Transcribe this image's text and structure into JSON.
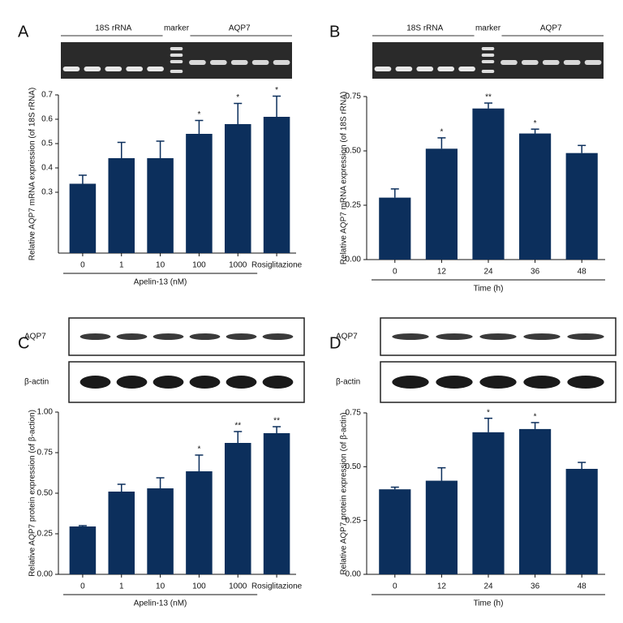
{
  "chart_data": [
    {
      "type": "bar",
      "panel": "A",
      "gel_labels": [
        "18S rRNA",
        "marker",
        "AQP7"
      ],
      "y_label": "Relative AQP7 mRNA expression (of 18S rRNA)",
      "x_label": "Apelin-13 (nM)",
      "categories": [
        "0",
        "1",
        "10",
        "100",
        "1000",
        "Rosiglitazione"
      ],
      "values": [
        0.335,
        0.44,
        0.44,
        0.54,
        0.58,
        0.61
      ],
      "errors": [
        0.035,
        0.065,
        0.07,
        0.055,
        0.085,
        0.085
      ],
      "annotations": [
        null,
        null,
        null,
        "*",
        "*",
        "*"
      ],
      "color": "#0c2f5c",
      "ylim": [
        0.05,
        0.7
      ],
      "yticks": [
        0.3,
        0.4,
        0.5,
        0.6,
        0.7
      ]
    },
    {
      "type": "bar",
      "panel": "B",
      "gel_labels": [
        "18S rRNA",
        "marker",
        "AQP7"
      ],
      "y_label": "Relative AQP7 mRNA expression (of 18S rRNA)",
      "x_label": "Time (h)",
      "categories": [
        "0",
        "12",
        "24",
        "36",
        "48"
      ],
      "values": [
        0.285,
        0.51,
        0.695,
        0.58,
        0.49
      ],
      "errors": [
        0.04,
        0.05,
        0.025,
        0.02,
        0.035
      ],
      "annotations": [
        null,
        "*",
        "**",
        "*",
        null
      ],
      "color": "#0c2f5c",
      "ylim": [
        0,
        0.75
      ],
      "yticks": [
        {
          "value": 0,
          "label": "0.00"
        },
        {
          "value": 0.25,
          "label": "0.25"
        },
        {
          "value": 0.5,
          "label": "0.50"
        },
        {
          "value": 0.75,
          "label": "0.75"
        }
      ]
    },
    {
      "type": "bar",
      "panel": "C",
      "gel_labels": [
        "AQP7",
        "β-actin"
      ],
      "y_label": "Relative AQP7 protein expression (of β-action)",
      "x_label": "Apelin-13 (nM)",
      "categories": [
        "0",
        "1",
        "10",
        "100",
        "1000",
        "Rosiglitazione"
      ],
      "values": [
        0.295,
        0.51,
        0.53,
        0.635,
        0.81,
        0.87
      ],
      "errors": [
        0.005,
        0.045,
        0.065,
        0.1,
        0.07,
        0.04
      ],
      "annotations": [
        null,
        null,
        null,
        "*",
        "**",
        "**"
      ],
      "color": "#0c2f5c",
      "ylim": [
        0,
        1
      ],
      "yticks": [
        {
          "value": 0,
          "label": "0.00"
        },
        {
          "value": 0.25,
          "label": "0.25"
        },
        {
          "value": 0.5,
          "label": "0.50"
        },
        {
          "value": 0.75,
          "label": "0.75"
        },
        {
          "value": 1,
          "label": "1.00"
        }
      ]
    },
    {
      "type": "bar",
      "panel": "D",
      "gel_labels": [
        "AQP7",
        "β-actin"
      ],
      "y_label": "Relative AQP7 protein expression (of β-actin)",
      "x_label": "Time (h)",
      "categories": [
        "0",
        "12",
        "24",
        "36",
        "48"
      ],
      "values": [
        0.395,
        0.435,
        0.66,
        0.675,
        0.49
      ],
      "errors": [
        0.01,
        0.06,
        0.065,
        0.03,
        0.03
      ],
      "annotations": [
        null,
        null,
        "*",
        "*",
        null
      ],
      "color": "#0c2f5c",
      "ylim": [
        0,
        0.75
      ],
      "yticks": [
        {
          "value": 0,
          "label": "0.00"
        },
        {
          "value": 0.25,
          "label": "0.25"
        },
        {
          "value": 0.5,
          "label": "0.50"
        },
        {
          "value": 0.75,
          "label": "0.75"
        }
      ]
    }
  ]
}
